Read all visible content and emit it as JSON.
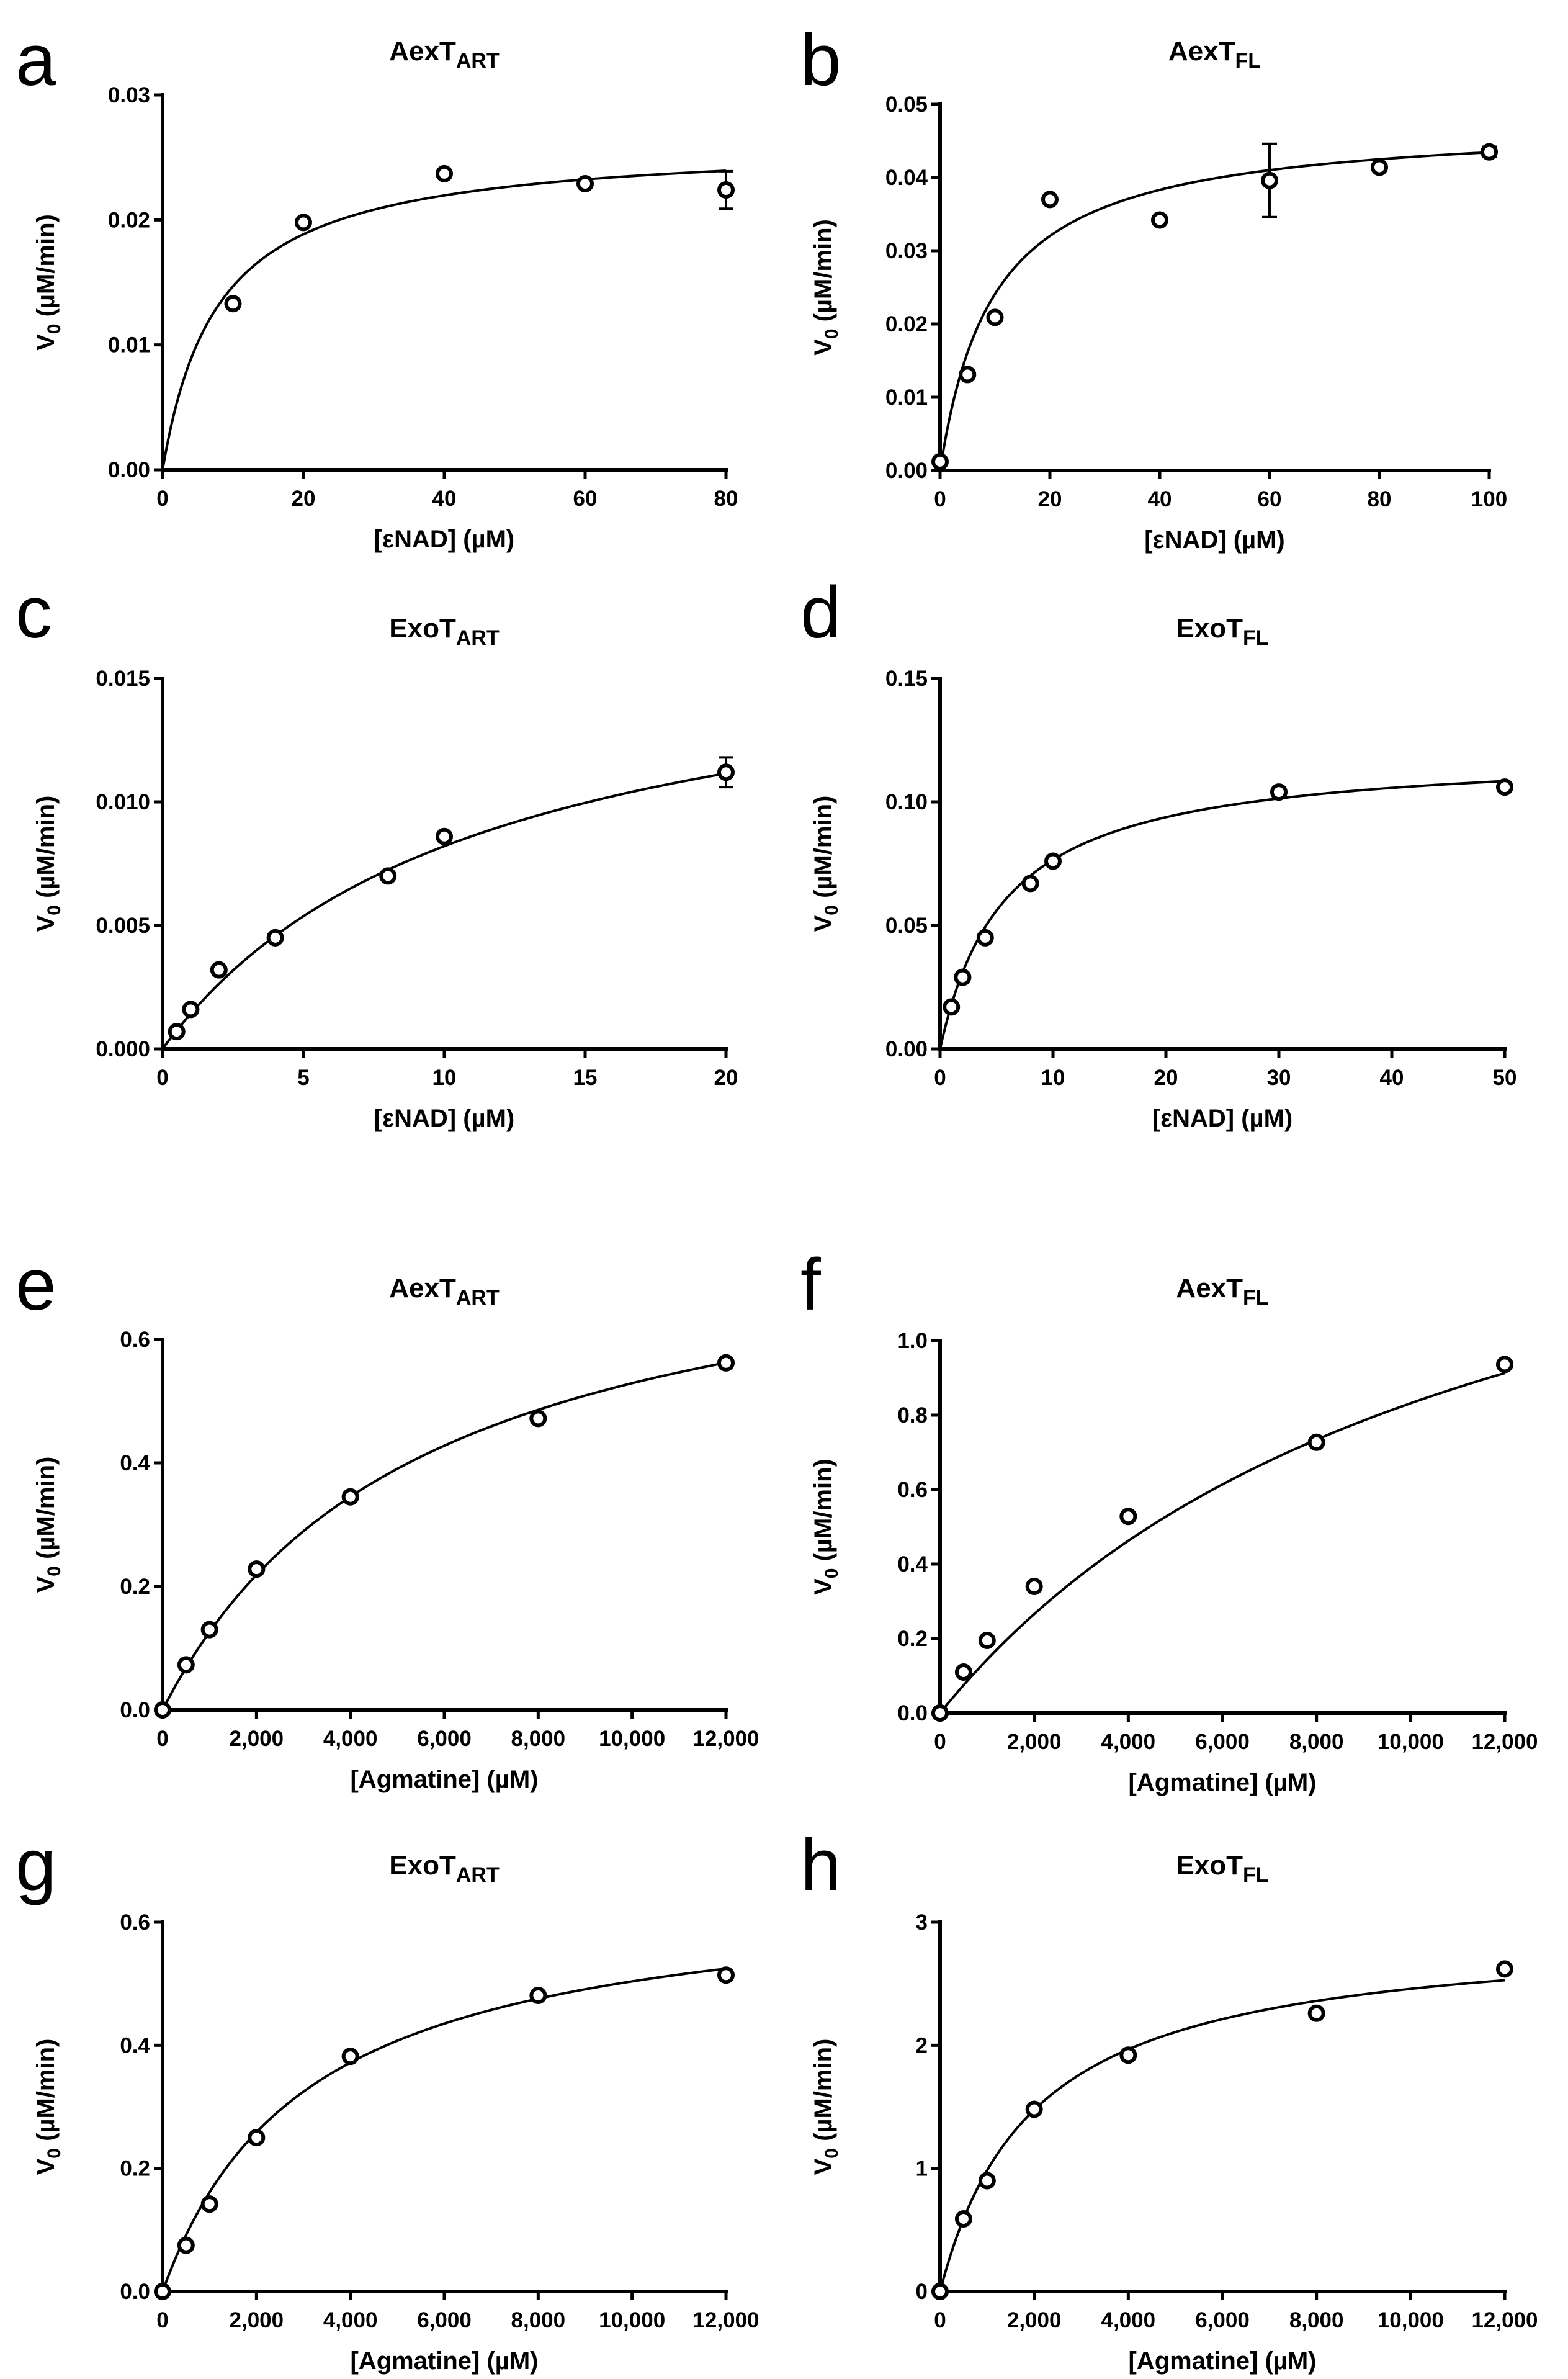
{
  "chart_data": [
    {
      "id": "a",
      "type": "scatter",
      "panel_letter": "a",
      "title": {
        "base": "AexT",
        "sub": "ART"
      },
      "xlabel": "[εNAD] (µM)",
      "ylabel_base": "V",
      "ylabel_sub": "0",
      "ylabel_rest": " (µM/min)",
      "xlim": [
        0,
        80
      ],
      "ylim": [
        0,
        0.03
      ],
      "xticks": [
        0,
        20,
        40,
        60,
        80
      ],
      "xtick_labels": [
        "0",
        "20",
        "40",
        "60",
        "80"
      ],
      "yticks": [
        0,
        0.01,
        0.02,
        0.03
      ],
      "ytick_labels": [
        "0.00",
        "0.01",
        "0.02",
        "0.03"
      ],
      "x": [
        10,
        20,
        40,
        60,
        80
      ],
      "y": [
        0.0133,
        0.0198,
        0.0237,
        0.0229,
        0.0224
      ],
      "err": [
        0,
        0,
        0,
        0,
        0.0015
      ],
      "fit": {
        "model": "michaelis-menten",
        "vmax": 0.0263,
        "km": 7.9
      }
    },
    {
      "id": "b",
      "type": "scatter",
      "panel_letter": "b",
      "title": {
        "base": "AexT",
        "sub": "FL"
      },
      "xlabel": "[εNAD] (µM)",
      "ylabel_base": "V",
      "ylabel_sub": "0",
      "ylabel_rest": " (µM/min)",
      "xlim": [
        0,
        100
      ],
      "ylim": [
        0,
        0.05
      ],
      "xticks": [
        0,
        20,
        40,
        60,
        80,
        100
      ],
      "xtick_labels": [
        "0",
        "20",
        "40",
        "60",
        "80",
        "100"
      ],
      "yticks": [
        0,
        0.01,
        0.02,
        0.03,
        0.04,
        0.05
      ],
      "ytick_labels": [
        "0.00",
        "0.01",
        "0.02",
        "0.03",
        "0.04",
        "0.05"
      ],
      "x": [
        0,
        5,
        10,
        20,
        40,
        60,
        80,
        100
      ],
      "y": [
        0.0012,
        0.0131,
        0.0209,
        0.037,
        0.0342,
        0.0396,
        0.0414,
        0.0435
      ],
      "err": [
        0,
        0,
        0,
        0,
        0,
        0.005,
        0,
        0.0007
      ],
      "fit": {
        "model": "michaelis-menten",
        "vmax": 0.0477,
        "km": 9.8
      }
    },
    {
      "id": "c",
      "type": "scatter",
      "panel_letter": "c",
      "title": {
        "base": "ExoT",
        "sub": "ART"
      },
      "xlabel": "[εNAD] (µM)",
      "ylabel_base": "V",
      "ylabel_sub": "0",
      "ylabel_rest": " (µM/min)",
      "xlim": [
        0,
        20
      ],
      "ylim": [
        0,
        0.015
      ],
      "xticks": [
        0,
        5,
        10,
        15,
        20
      ],
      "xtick_labels": [
        "0",
        "5",
        "10",
        "15",
        "20"
      ],
      "yticks": [
        0,
        0.005,
        0.01,
        0.015
      ],
      "ytick_labels": [
        "0.000",
        "0.005",
        "0.010",
        "0.015"
      ],
      "x": [
        0.5,
        1,
        2,
        4,
        8,
        10,
        20
      ],
      "y": [
        0.0007,
        0.0016,
        0.0032,
        0.0045,
        0.007,
        0.0086,
        0.0112
      ],
      "err": [
        0,
        0,
        0,
        0,
        0,
        0,
        0.0006
      ],
      "fit": {
        "model": "michaelis-menten",
        "vmax": 0.0174,
        "km": 11.2
      }
    },
    {
      "id": "d",
      "type": "scatter",
      "panel_letter": "d",
      "title": {
        "base": "ExoT",
        "sub": "FL"
      },
      "xlabel": "[εNAD] (µM)",
      "ylabel_base": "V",
      "ylabel_sub": "0",
      "ylabel_rest": " (µM/min)",
      "xlim": [
        0,
        50
      ],
      "ylim": [
        0,
        0.15
      ],
      "xticks": [
        0,
        10,
        20,
        30,
        40,
        50
      ],
      "xtick_labels": [
        "0",
        "10",
        "20",
        "30",
        "40",
        "50"
      ],
      "yticks": [
        0,
        0.05,
        0.1,
        0.15
      ],
      "ytick_labels": [
        "0.00",
        "0.05",
        "0.10",
        "0.15"
      ],
      "x": [
        1,
        2,
        4,
        8,
        10,
        30,
        50
      ],
      "y": [
        0.017,
        0.029,
        0.045,
        0.067,
        0.076,
        0.104,
        0.106
      ],
      "err": [
        0,
        0,
        0,
        0,
        0,
        0,
        0
      ],
      "fit": {
        "model": "michaelis-menten",
        "vmax": 0.121,
        "km": 5.8
      }
    },
    {
      "id": "e",
      "type": "scatter",
      "panel_letter": "e",
      "title": {
        "base": "AexT",
        "sub": "ART"
      },
      "xlabel": "[Agmatine] (µM)",
      "ylabel_base": "V",
      "ylabel_sub": "0",
      "ylabel_rest": " (µM/min)",
      "xlim": [
        0,
        12000
      ],
      "ylim": [
        0,
        0.6
      ],
      "xticks": [
        0,
        2000,
        4000,
        6000,
        8000,
        10000,
        12000
      ],
      "xtick_labels": [
        "0",
        "2,000",
        "4,000",
        "6,000",
        "8,000",
        "10,000",
        "12,000"
      ],
      "yticks": [
        0,
        0.2,
        0.4,
        0.6
      ],
      "ytick_labels": [
        "0.0",
        "0.2",
        "0.4",
        "0.6"
      ],
      "x": [
        0,
        500,
        1000,
        2000,
        4000,
        8000,
        12000
      ],
      "y": [
        0,
        0.073,
        0.13,
        0.228,
        0.345,
        0.472,
        0.562
      ],
      "err": [
        0,
        0,
        0,
        0,
        0,
        0,
        0
      ],
      "fit": {
        "model": "michaelis-menten",
        "vmax": 0.82,
        "km": 5500
      }
    },
    {
      "id": "f",
      "type": "scatter",
      "panel_letter": "f",
      "title": {
        "base": "AexT",
        "sub": "FL"
      },
      "xlabel": "[Agmatine] (µM)",
      "ylabel_base": "V",
      "ylabel_sub": "0",
      "ylabel_rest": " (µM/min)",
      "xlim": [
        0,
        12000
      ],
      "ylim": [
        0,
        1.0
      ],
      "xticks": [
        0,
        2000,
        4000,
        6000,
        8000,
        10000,
        12000
      ],
      "xtick_labels": [
        "0",
        "2,000",
        "4,000",
        "6,000",
        "8,000",
        "10,000",
        "12,000"
      ],
      "yticks": [
        0,
        0.2,
        0.4,
        0.6,
        0.8,
        1.0
      ],
      "ytick_labels": [
        "0.0",
        "0.2",
        "0.4",
        "0.6",
        "0.8",
        "1.0"
      ],
      "x": [
        0,
        500,
        1000,
        2000,
        4000,
        8000,
        12000
      ],
      "y": [
        0,
        0.11,
        0.195,
        0.34,
        0.528,
        0.727,
        0.936
      ],
      "err": [
        0,
        0,
        0,
        0,
        0,
        0,
        0
      ],
      "fit": {
        "model": "michaelis-menten",
        "vmax": 1.78,
        "km": 11400
      }
    },
    {
      "id": "g",
      "type": "scatter",
      "panel_letter": "g",
      "title": {
        "base": "ExoT",
        "sub": "ART"
      },
      "xlabel": "[Agmatine] (µM)",
      "ylabel_base": "V",
      "ylabel_sub": "0",
      "ylabel_rest": " (µM/min)",
      "xlim": [
        0,
        12000
      ],
      "ylim": [
        0,
        0.6
      ],
      "xticks": [
        0,
        2000,
        4000,
        6000,
        8000,
        10000,
        12000
      ],
      "xtick_labels": [
        "0",
        "2,000",
        "4,000",
        "6,000",
        "8,000",
        "10,000",
        "12,000"
      ],
      "yticks": [
        0,
        0.2,
        0.4,
        0.6
      ],
      "ytick_labels": [
        "0.0",
        "0.2",
        "0.4",
        "0.6"
      ],
      "x": [
        0,
        500,
        1000,
        2000,
        4000,
        8000,
        12000
      ],
      "y": [
        0,
        0.075,
        0.142,
        0.25,
        0.382,
        0.481,
        0.514
      ],
      "err": [
        0,
        0,
        0,
        0,
        0,
        0,
        0
      ],
      "fit": {
        "model": "michaelis-menten",
        "vmax": 0.66,
        "km": 3100
      }
    },
    {
      "id": "h",
      "type": "scatter",
      "panel_letter": "h",
      "title": {
        "base": "ExoT",
        "sub": "FL"
      },
      "xlabel": "[Agmatine] (µM)",
      "ylabel_base": "V",
      "ylabel_sub": "0",
      "ylabel_rest": " (µM/min)",
      "xlim": [
        0,
        12000
      ],
      "ylim": [
        0,
        3
      ],
      "xticks": [
        0,
        2000,
        4000,
        6000,
        8000,
        10000,
        12000
      ],
      "xtick_labels": [
        "0",
        "2,000",
        "4,000",
        "6,000",
        "8,000",
        "10,000",
        "12,000"
      ],
      "yticks": [
        0,
        1,
        2,
        3
      ],
      "ytick_labels": [
        "0",
        "1",
        "2",
        "3"
      ],
      "x": [
        0,
        500,
        1000,
        2000,
        4000,
        8000,
        12000
      ],
      "y": [
        0,
        0.59,
        0.9,
        1.48,
        1.92,
        2.26,
        2.62
      ],
      "err": [
        0,
        0,
        0,
        0,
        0,
        0,
        0
      ],
      "fit": {
        "model": "michaelis-menten",
        "vmax": 2.95,
        "km": 2000
      }
    }
  ]
}
